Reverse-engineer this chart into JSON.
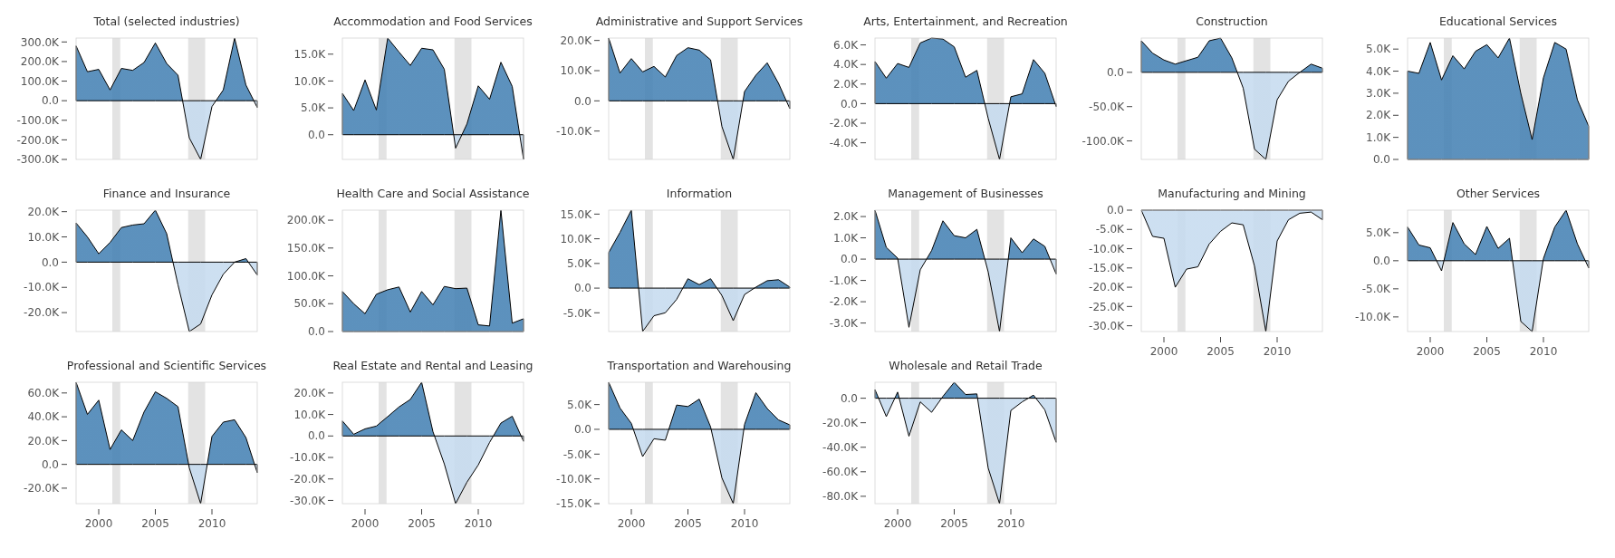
{
  "chart_data": [
    {
      "type": "area",
      "title": "Total (selected industries)",
      "x": [
        1998,
        1999,
        2000,
        2001,
        2002,
        2003,
        2004,
        2005,
        2006,
        2007,
        2008,
        2009,
        2010,
        2011,
        2012,
        2013,
        2014
      ],
      "series": [
        {
          "colors": [
            "#4682b4",
            "#4682b4",
            "#4682b4",
            "#4682b4",
            "#4682b4",
            "#4682b4",
            "#4682b4",
            "#4682b4",
            "#4682b4",
            "#4682b4",
            "#c6dbef",
            "#c6dbef",
            "#c6dbef",
            "#4682b4",
            "#4682b4",
            "#4682b4",
            "#c6dbef"
          ],
          "values": [
            280000,
            148000,
            160000,
            55000,
            165000,
            155000,
            195000,
            295000,
            190000,
            130000,
            -190000,
            -300000,
            -30000,
            55000,
            320000,
            80000,
            -35000
          ]
        }
      ],
      "xlim": [
        1998,
        2014
      ],
      "xticks": [
        2000,
        2005,
        2010
      ],
      "ylim": [
        -300000,
        320000
      ],
      "yticks": [
        {
          "value": -300000,
          "label": "-300.0K"
        },
        {
          "value": -200000,
          "label": "-200.0K"
        },
        {
          "value": -100000,
          "label": "-100.0K"
        },
        {
          "value": 0,
          "label": "0.0"
        },
        {
          "value": 100000,
          "label": "100.0K"
        },
        {
          "value": 200000,
          "label": "200.0K"
        },
        {
          "value": 300000,
          "label": "300.0K"
        }
      ],
      "tick_labels": "y",
      "bands": [
        {
          "axis": "x",
          "from": 2001.2,
          "to": 2001.9,
          "color": "#e3e3e3"
        },
        {
          "axis": "x",
          "from": 2007.9,
          "to": 2009.4,
          "color": "#e3e3e3"
        }
      ]
    },
    {
      "type": "area",
      "title": "Accommodation and Food Services",
      "x": [
        1998,
        1999,
        2000,
        2001,
        2002,
        2003,
        2004,
        2005,
        2006,
        2007,
        2008,
        2009,
        2010,
        2011,
        2012,
        2013,
        2014
      ],
      "series": [
        {
          "colors": [
            "#4682b4",
            "#4682b4",
            "#4682b4",
            "#4682b4",
            "#4682b4",
            "#4682b4",
            "#4682b4",
            "#4682b4",
            "#4682b4",
            "#4682b4",
            "#c6dbef",
            "#4682b4",
            "#4682b4",
            "#4682b4",
            "#4682b4",
            "#4682b4",
            "#c6dbef"
          ],
          "values": [
            7700,
            4500,
            10200,
            4600,
            18000,
            15400,
            12900,
            16100,
            15800,
            12200,
            -2500,
            2000,
            9100,
            6600,
            13500,
            9000,
            -4600
          ]
        }
      ],
      "xlim": [
        1998,
        2014
      ],
      "xticks": [
        2000,
        2005,
        2010
      ],
      "ylim": [
        -4600,
        18000
      ],
      "yticks": [
        {
          "value": 0,
          "label": "0.0"
        },
        {
          "value": 5000,
          "label": "5.0K"
        },
        {
          "value": 10000,
          "label": "10.0K"
        },
        {
          "value": 15000,
          "label": "15.0K"
        }
      ],
      "tick_labels": "y",
      "bands": [
        {
          "axis": "x",
          "from": 2001.2,
          "to": 2001.9,
          "color": "#e3e3e3"
        },
        {
          "axis": "x",
          "from": 2007.9,
          "to": 2009.4,
          "color": "#e3e3e3"
        }
      ]
    },
    {
      "type": "area",
      "title": "Administrative and Support Services",
      "x": [
        1998,
        1999,
        2000,
        2001,
        2002,
        2003,
        2004,
        2005,
        2006,
        2007,
        2008,
        2009,
        2010,
        2011,
        2012,
        2013,
        2014
      ],
      "series": [
        {
          "colors": [
            "#4682b4",
            "#4682b4",
            "#4682b4",
            "#4682b4",
            "#4682b4",
            "#4682b4",
            "#4682b4",
            "#4682b4",
            "#4682b4",
            "#4682b4",
            "#c6dbef",
            "#c6dbef",
            "#4682b4",
            "#4682b4",
            "#4682b4",
            "#4682b4",
            "#c6dbef"
          ],
          "values": [
            20800,
            9200,
            14000,
            9600,
            11400,
            7900,
            15000,
            17600,
            16800,
            13600,
            -8500,
            -19400,
            3100,
            8500,
            12600,
            5800,
            -2600
          ]
        }
      ],
      "xlim": [
        1998,
        2014
      ],
      "xticks": [
        2000,
        2005,
        2010
      ],
      "ylim": [
        -19400,
        20800
      ],
      "yticks": [
        {
          "value": -10000,
          "label": "-10.0K"
        },
        {
          "value": 0,
          "label": "0.0"
        },
        {
          "value": 10000,
          "label": "10.0K"
        },
        {
          "value": 20000,
          "label": "20.0K"
        }
      ],
      "tick_labels": "y",
      "bands": [
        {
          "axis": "x",
          "from": 2001.2,
          "to": 2001.9,
          "color": "#e3e3e3"
        },
        {
          "axis": "x",
          "from": 2007.9,
          "to": 2009.4,
          "color": "#e3e3e3"
        }
      ]
    },
    {
      "type": "area",
      "title": "Arts, Entertainment, and Recreation",
      "x": [
        1998,
        1999,
        2000,
        2001,
        2002,
        2003,
        2004,
        2005,
        2006,
        2007,
        2008,
        2009,
        2010,
        2011,
        2012,
        2013,
        2014
      ],
      "series": [
        {
          "colors": [
            "#4682b4",
            "#4682b4",
            "#4682b4",
            "#4682b4",
            "#4682b4",
            "#4682b4",
            "#4682b4",
            "#4682b4",
            "#4682b4",
            "#4682b4",
            "#c6dbef",
            "#c6dbef",
            "#4682b4",
            "#4682b4",
            "#4682b4",
            "#4682b4",
            "#c6dbef"
          ],
          "values": [
            4300,
            2600,
            4100,
            3700,
            6200,
            6700,
            6600,
            5800,
            2700,
            3400,
            -1500,
            -5700,
            700,
            1000,
            4500,
            3100,
            -300
          ]
        }
      ],
      "xlim": [
        1998,
        2014
      ],
      "xticks": [
        2000,
        2005,
        2010
      ],
      "ylim": [
        -5700,
        6700
      ],
      "yticks": [
        {
          "value": -4000,
          "label": "-4.0K"
        },
        {
          "value": -2000,
          "label": "-2.0K"
        },
        {
          "value": 0,
          "label": "0.0"
        },
        {
          "value": 2000,
          "label": "2.0K"
        },
        {
          "value": 4000,
          "label": "4.0K"
        },
        {
          "value": 6000,
          "label": "6.0K"
        }
      ],
      "tick_labels": "y",
      "bands": [
        {
          "axis": "x",
          "from": 2001.2,
          "to": 2001.9,
          "color": "#e3e3e3"
        },
        {
          "axis": "x",
          "from": 2007.9,
          "to": 2009.4,
          "color": "#e3e3e3"
        }
      ]
    },
    {
      "type": "area",
      "title": "Construction",
      "x": [
        1998,
        1999,
        2000,
        2001,
        2002,
        2003,
        2004,
        2005,
        2006,
        2007,
        2008,
        2009,
        2010,
        2011,
        2012,
        2013,
        2014
      ],
      "series": [
        {
          "colors": [
            "#4682b4",
            "#4682b4",
            "#4682b4",
            "#4682b4",
            "#4682b4",
            "#4682b4",
            "#4682b4",
            "#4682b4",
            "#4682b4",
            "#c6dbef",
            "#c6dbef",
            "#c6dbef",
            "#c6dbef",
            "#c6dbef",
            "#4682b4",
            "#4682b4",
            "#4682b4"
          ],
          "values": [
            46000,
            28000,
            18000,
            12000,
            17000,
            22000,
            46000,
            50000,
            21000,
            -23000,
            -112000,
            -127000,
            -40000,
            -13000,
            0,
            12000,
            6000
          ]
        }
      ],
      "xlim": [
        1998,
        2014
      ],
      "xticks": [
        2000,
        2005,
        2010
      ],
      "ylim": [
        -127000,
        50000
      ],
      "yticks": [
        {
          "value": -100000,
          "label": "-100.0K"
        },
        {
          "value": -50000,
          "label": "-50.0K"
        },
        {
          "value": 0,
          "label": "0.0"
        }
      ],
      "tick_labels": "y",
      "bands": [
        {
          "axis": "x",
          "from": 2001.2,
          "to": 2001.9,
          "color": "#e3e3e3"
        },
        {
          "axis": "x",
          "from": 2007.9,
          "to": 2009.4,
          "color": "#e3e3e3"
        }
      ]
    },
    {
      "type": "area",
      "title": "Educational Services",
      "x": [
        1998,
        1999,
        2000,
        2001,
        2002,
        2003,
        2004,
        2005,
        2006,
        2007,
        2008,
        2009,
        2010,
        2011,
        2012,
        2013,
        2014
      ],
      "series": [
        {
          "colors": [
            "#4682b4",
            "#4682b4",
            "#4682b4",
            "#4682b4",
            "#4682b4",
            "#4682b4",
            "#4682b4",
            "#4682b4",
            "#4682b4",
            "#4682b4",
            "#4682b4",
            "#4682b4",
            "#4682b4",
            "#4682b4",
            "#4682b4",
            "#4682b4",
            "#4682b4"
          ],
          "values": [
            4000,
            3900,
            5300,
            3600,
            4700,
            4100,
            4900,
            5200,
            4600,
            5500,
            3000,
            900,
            3700,
            5300,
            5000,
            2700,
            1500
          ]
        }
      ],
      "xlim": [
        1998,
        2014
      ],
      "xticks": [
        2000,
        2005,
        2010
      ],
      "ylim": [
        0,
        5500
      ],
      "yticks": [
        {
          "value": 0,
          "label": "0.0"
        },
        {
          "value": 1000,
          "label": "1.0K"
        },
        {
          "value": 2000,
          "label": "2.0K"
        },
        {
          "value": 3000,
          "label": "3.0K"
        },
        {
          "value": 4000,
          "label": "4.0K"
        },
        {
          "value": 5000,
          "label": "5.0K"
        }
      ],
      "tick_labels": "y",
      "bands": [
        {
          "axis": "x",
          "from": 2001.2,
          "to": 2001.9,
          "color": "#e3e3e3"
        },
        {
          "axis": "x",
          "from": 2007.9,
          "to": 2009.4,
          "color": "#e3e3e3"
        }
      ]
    },
    {
      "type": "area",
      "title": "Finance and Insurance",
      "x": [
        1998,
        1999,
        2000,
        2001,
        2002,
        2003,
        2004,
        2005,
        2006,
        2007,
        2008,
        2009,
        2010,
        2011,
        2012,
        2013,
        2014
      ],
      "series": [
        {
          "colors": [
            "#4682b4",
            "#4682b4",
            "#4682b4",
            "#4682b4",
            "#4682b4",
            "#4682b4",
            "#4682b4",
            "#4682b4",
            "#4682b4",
            "#c6dbef",
            "#c6dbef",
            "#c6dbef",
            "#c6dbef",
            "#c6dbef",
            "#4682b4",
            "#4682b4",
            "#c6dbef"
          ],
          "values": [
            15500,
            10000,
            3300,
            7800,
            13700,
            14700,
            15200,
            20600,
            11300,
            -9000,
            -27500,
            -24500,
            -13000,
            -4800,
            0,
            1400,
            -5100
          ]
        }
      ],
      "xlim": [
        1998,
        2014
      ],
      "xticks": [
        2000,
        2005,
        2010
      ],
      "ylim": [
        -27500,
        20600
      ],
      "yticks": [
        {
          "value": -20000,
          "label": "-20.0K"
        },
        {
          "value": -10000,
          "label": "-10.0K"
        },
        {
          "value": 0,
          "label": "0.0"
        },
        {
          "value": 10000,
          "label": "10.0K"
        },
        {
          "value": 20000,
          "label": "20.0K"
        }
      ],
      "tick_labels": "y",
      "bands": [
        {
          "axis": "x",
          "from": 2001.2,
          "to": 2001.9,
          "color": "#e3e3e3"
        },
        {
          "axis": "x",
          "from": 2007.9,
          "to": 2009.4,
          "color": "#e3e3e3"
        }
      ]
    },
    {
      "type": "area",
      "title": "Health Care and Social Assistance",
      "x": [
        1998,
        1999,
        2000,
        2001,
        2002,
        2003,
        2004,
        2005,
        2006,
        2007,
        2008,
        2009,
        2010,
        2011,
        2012,
        2013,
        2014
      ],
      "series": [
        {
          "colors": [
            "#4682b4",
            "#4682b4",
            "#4682b4",
            "#4682b4",
            "#4682b4",
            "#4682b4",
            "#4682b4",
            "#4682b4",
            "#4682b4",
            "#4682b4",
            "#4682b4",
            "#4682b4",
            "#4682b4",
            "#4682b4",
            "#4682b4",
            "#4682b4",
            "#4682b4"
          ],
          "values": [
            72000,
            50000,
            32000,
            67000,
            75000,
            80000,
            35000,
            72000,
            48000,
            81000,
            77000,
            78000,
            12000,
            10000,
            218000,
            15000,
            23000
          ]
        }
      ],
      "xlim": [
        1998,
        2014
      ],
      "xticks": [
        2000,
        2005,
        2010
      ],
      "ylim": [
        0,
        218000
      ],
      "yticks": [
        {
          "value": 0,
          "label": "0.0"
        },
        {
          "value": 50000,
          "label": "50.0K"
        },
        {
          "value": 100000,
          "label": "100.0K"
        },
        {
          "value": 150000,
          "label": "150.0K"
        },
        {
          "value": 200000,
          "label": "200.0K"
        }
      ],
      "tick_labels": "y",
      "bands": [
        {
          "axis": "x",
          "from": 2001.2,
          "to": 2001.9,
          "color": "#e3e3e3"
        },
        {
          "axis": "x",
          "from": 2007.9,
          "to": 2009.4,
          "color": "#e3e3e3"
        }
      ]
    },
    {
      "type": "area",
      "title": "Information",
      "x": [
        1998,
        1999,
        2000,
        2001,
        2002,
        2003,
        2004,
        2005,
        2006,
        2007,
        2008,
        2009,
        2010,
        2011,
        2012,
        2013,
        2014
      ],
      "series": [
        {
          "colors": [
            "#4682b4",
            "#4682b4",
            "#4682b4",
            "#c6dbef",
            "#c6dbef",
            "#c6dbef",
            "#c6dbef",
            "#4682b4",
            "#4682b4",
            "#4682b4",
            "#c6dbef",
            "#c6dbef",
            "#c6dbef",
            "#4682b4",
            "#4682b4",
            "#4682b4",
            "#4682b4"
          ],
          "values": [
            7200,
            11300,
            15800,
            -8800,
            -5600,
            -5000,
            -2300,
            1900,
            700,
            1900,
            -1500,
            -6600,
            -1300,
            200,
            1500,
            1700,
            200
          ]
        }
      ],
      "xlim": [
        1998,
        2014
      ],
      "xticks": [
        2000,
        2005,
        2010
      ],
      "ylim": [
        -8800,
        15800
      ],
      "yticks": [
        {
          "value": -5000,
          "label": "-5.0K"
        },
        {
          "value": 0,
          "label": "0.0"
        },
        {
          "value": 5000,
          "label": "5.0K"
        },
        {
          "value": 10000,
          "label": "10.0K"
        },
        {
          "value": 15000,
          "label": "15.0K"
        }
      ],
      "tick_labels": "y",
      "bands": [
        {
          "axis": "x",
          "from": 2001.2,
          "to": 2001.9,
          "color": "#e3e3e3"
        },
        {
          "axis": "x",
          "from": 2007.9,
          "to": 2009.4,
          "color": "#e3e3e3"
        }
      ]
    },
    {
      "type": "area",
      "title": "Management of Businesses",
      "x": [
        1998,
        1999,
        2000,
        2001,
        2002,
        2003,
        2004,
        2005,
        2006,
        2007,
        2008,
        2009,
        2010,
        2011,
        2012,
        2013,
        2014
      ],
      "series": [
        {
          "colors": [
            "#4682b4",
            "#4682b4",
            "#4682b4",
            "#c6dbef",
            "#c6dbef",
            "#4682b4",
            "#4682b4",
            "#4682b4",
            "#4682b4",
            "#4682b4",
            "#c6dbef",
            "#c6dbef",
            "#4682b4",
            "#4682b4",
            "#4682b4",
            "#4682b4",
            "#c6dbef"
          ],
          "values": [
            2300,
            550,
            50,
            -3200,
            -500,
            400,
            1800,
            1100,
            1000,
            1400,
            -600,
            -3400,
            1000,
            300,
            950,
            600,
            -700
          ]
        }
      ],
      "xlim": [
        1998,
        2014
      ],
      "xticks": [
        2000,
        2005,
        2010
      ],
      "ylim": [
        -3400,
        2300
      ],
      "yticks": [
        {
          "value": -3000,
          "label": "-3.0K"
        },
        {
          "value": -2000,
          "label": "-2.0K"
        },
        {
          "value": -1000,
          "label": "-1.0K"
        },
        {
          "value": 0,
          "label": "0.0"
        },
        {
          "value": 1000,
          "label": "1.0K"
        },
        {
          "value": 2000,
          "label": "2.0K"
        }
      ],
      "tick_labels": "y",
      "bands": [
        {
          "axis": "x",
          "from": 2001.2,
          "to": 2001.9,
          "color": "#e3e3e3"
        },
        {
          "axis": "x",
          "from": 2007.9,
          "to": 2009.4,
          "color": "#e3e3e3"
        }
      ]
    },
    {
      "type": "area",
      "title": "Manufacturing and Mining",
      "x": [
        1998,
        1999,
        2000,
        2001,
        2002,
        2003,
        2004,
        2005,
        2006,
        2007,
        2008,
        2009,
        2010,
        2011,
        2012,
        2013,
        2014
      ],
      "series": [
        {
          "colors": [
            "#4682b4",
            "#c6dbef",
            "#c6dbef",
            "#c6dbef",
            "#c6dbef",
            "#c6dbef",
            "#c6dbef",
            "#c6dbef",
            "#c6dbef",
            "#c6dbef",
            "#c6dbef",
            "#c6dbef",
            "#c6dbef",
            "#c6dbef",
            "#c6dbef",
            "#c6dbef",
            "#c6dbef"
          ],
          "values": [
            0,
            -6800,
            -7300,
            -20000,
            -15300,
            -14700,
            -8800,
            -5500,
            -3300,
            -3800,
            -14500,
            -31500,
            -8000,
            -2500,
            -800,
            -500,
            -2500
          ]
        }
      ],
      "xlim": [
        1998,
        2014
      ],
      "xticks": [
        2000,
        2005,
        2010
      ],
      "ylim": [
        -31500,
        0
      ],
      "yticks": [
        {
          "value": -30000,
          "label": "-30.0K"
        },
        {
          "value": -25000,
          "label": "-25.0K"
        },
        {
          "value": -20000,
          "label": "-20.0K"
        },
        {
          "value": -15000,
          "label": "-15.0K"
        },
        {
          "value": -10000,
          "label": "-10.0K"
        },
        {
          "value": -5000,
          "label": "-5.0K"
        },
        {
          "value": 0,
          "label": "0.0"
        }
      ],
      "bands": [
        {
          "axis": "x",
          "from": 2001.2,
          "to": 2001.9,
          "color": "#e3e3e3"
        },
        {
          "axis": "x",
          "from": 2007.9,
          "to": 2009.4,
          "color": "#e3e3e3"
        }
      ]
    },
    {
      "type": "area",
      "title": "Other Services",
      "x": [
        1998,
        1999,
        2000,
        2001,
        2002,
        2003,
        2004,
        2005,
        2006,
        2007,
        2008,
        2009,
        2010,
        2011,
        2012,
        2013,
        2014
      ],
      "series": [
        {
          "colors": [
            "#4682b4",
            "#4682b4",
            "#4682b4",
            "#c6dbef",
            "#4682b4",
            "#4682b4",
            "#4682b4",
            "#4682b4",
            "#4682b4",
            "#4682b4",
            "#c6dbef",
            "#c6dbef",
            "#4682b4",
            "#4682b4",
            "#4682b4",
            "#4682b4",
            "#c6dbef"
          ],
          "values": [
            6000,
            2800,
            2300,
            -1800,
            6800,
            3000,
            1100,
            6100,
            2200,
            4000,
            -10800,
            -12600,
            400,
            6000,
            9000,
            3000,
            -1300
          ]
        }
      ],
      "xlim": [
        1998,
        2014
      ],
      "xticks": [
        2000,
        2005,
        2010
      ],
      "ylim": [
        -12600,
        9000
      ],
      "yticks": [
        {
          "value": -10000,
          "label": "-10.0K"
        },
        {
          "value": -5000,
          "label": "-5.0K"
        },
        {
          "value": 0,
          "label": "0.0"
        },
        {
          "value": 5000,
          "label": "5.0K"
        }
      ],
      "bands": [
        {
          "axis": "x",
          "from": 2001.2,
          "to": 2001.9,
          "color": "#e3e3e3"
        },
        {
          "axis": "x",
          "from": 2007.9,
          "to": 2009.4,
          "color": "#e3e3e3"
        }
      ]
    },
    {
      "type": "area",
      "title": "Professional and Scientific Services",
      "x": [
        1998,
        1999,
        2000,
        2001,
        2002,
        2003,
        2004,
        2005,
        2006,
        2007,
        2008,
        2009,
        2010,
        2011,
        2012,
        2013,
        2014
      ],
      "series": [
        {
          "colors": [
            "#4682b4",
            "#4682b4",
            "#4682b4",
            "#4682b4",
            "#4682b4",
            "#4682b4",
            "#4682b4",
            "#4682b4",
            "#4682b4",
            "#4682b4",
            "#c6dbef",
            "#c6dbef",
            "#4682b4",
            "#4682b4",
            "#4682b4",
            "#4682b4",
            "#c6dbef"
          ],
          "values": [
            69000,
            42000,
            54000,
            12500,
            29000,
            20000,
            44000,
            61000,
            55500,
            48500,
            -3000,
            -33000,
            23500,
            35500,
            37500,
            22500,
            -7000
          ]
        }
      ],
      "xlim": [
        1998,
        2014
      ],
      "xticks": [
        2000,
        2005,
        2010
      ],
      "ylim": [
        -33000,
        69000
      ],
      "yticks": [
        {
          "value": -20000,
          "label": "-20.0K"
        },
        {
          "value": 0,
          "label": "0.0"
        },
        {
          "value": 20000,
          "label": "20.0K"
        },
        {
          "value": 40000,
          "label": "40.0K"
        },
        {
          "value": 60000,
          "label": "60.0K"
        }
      ],
      "bands": [
        {
          "axis": "x",
          "from": 2001.2,
          "to": 2001.9,
          "color": "#e3e3e3"
        },
        {
          "axis": "x",
          "from": 2007.9,
          "to": 2009.4,
          "color": "#e3e3e3"
        }
      ]
    },
    {
      "type": "area",
      "title": "Real Estate and Rental and Leasing",
      "x": [
        1998,
        1999,
        2000,
        2001,
        2002,
        2003,
        2004,
        2005,
        2006,
        2007,
        2008,
        2009,
        2010,
        2011,
        2012,
        2013,
        2014
      ],
      "series": [
        {
          "colors": [
            "#4682b4",
            "#4682b4",
            "#4682b4",
            "#4682b4",
            "#4682b4",
            "#4682b4",
            "#4682b4",
            "#4682b4",
            "#4682b4",
            "#c6dbef",
            "#c6dbef",
            "#c6dbef",
            "#c6dbef",
            "#c6dbef",
            "#4682b4",
            "#4682b4",
            "#c6dbef"
          ],
          "values": [
            7000,
            800,
            3300,
            4600,
            9000,
            13500,
            17000,
            25000,
            2000,
            -13000,
            -31500,
            -21500,
            -13500,
            -3000,
            6000,
            9200,
            -2500
          ]
        }
      ],
      "xlim": [
        1998,
        2014
      ],
      "xticks": [
        2000,
        2005,
        2010
      ],
      "ylim": [
        -31500,
        25000
      ],
      "yticks": [
        {
          "value": -30000,
          "label": "-30.0K"
        },
        {
          "value": -20000,
          "label": "-20.0K"
        },
        {
          "value": -10000,
          "label": "-10.0K"
        },
        {
          "value": 0,
          "label": "0.0"
        },
        {
          "value": 10000,
          "label": "10.0K"
        },
        {
          "value": 20000,
          "label": "20.0K"
        }
      ],
      "bands": [
        {
          "axis": "x",
          "from": 2001.2,
          "to": 2001.9,
          "color": "#e3e3e3"
        },
        {
          "axis": "x",
          "from": 2007.9,
          "to": 2009.4,
          "color": "#e3e3e3"
        }
      ]
    },
    {
      "type": "area",
      "title": "Transportation and Warehousing",
      "x": [
        1998,
        1999,
        2000,
        2001,
        2002,
        2003,
        2004,
        2005,
        2006,
        2007,
        2008,
        2009,
        2010,
        2011,
        2012,
        2013,
        2014
      ],
      "series": [
        {
          "colors": [
            "#4682b4",
            "#4682b4",
            "#4682b4",
            "#c6dbef",
            "#c6dbef",
            "#c6dbef",
            "#4682b4",
            "#4682b4",
            "#4682b4",
            "#4682b4",
            "#c6dbef",
            "#c6dbef",
            "#4682b4",
            "#4682b4",
            "#4682b4",
            "#4682b4",
            "#4682b4"
          ],
          "values": [
            9500,
            4300,
            1200,
            -5500,
            -1900,
            -2200,
            4900,
            4600,
            6100,
            500,
            -9800,
            -15000,
            1000,
            7400,
            4200,
            1900,
            900
          ]
        }
      ],
      "xlim": [
        1998,
        2014
      ],
      "xticks": [
        2000,
        2005,
        2010
      ],
      "ylim": [
        -15000,
        9500
      ],
      "yticks": [
        {
          "value": -15000,
          "label": "-15.0K"
        },
        {
          "value": -10000,
          "label": "-10.0K"
        },
        {
          "value": -5000,
          "label": "-5.0K"
        },
        {
          "value": 0,
          "label": "0.0"
        },
        {
          "value": 5000,
          "label": "5.0K"
        }
      ],
      "bands": [
        {
          "axis": "x",
          "from": 2001.2,
          "to": 2001.9,
          "color": "#e3e3e3"
        },
        {
          "axis": "x",
          "from": 2007.9,
          "to": 2009.4,
          "color": "#e3e3e3"
        }
      ]
    },
    {
      "type": "area",
      "title": "Wholesale and Retail Trade",
      "x": [
        1998,
        1999,
        2000,
        2001,
        2002,
        2003,
        2004,
        2005,
        2006,
        2007,
        2008,
        2009,
        2010,
        2011,
        2012,
        2013,
        2014
      ],
      "series": [
        {
          "colors": [
            "#4682b4",
            "#c6dbef",
            "#4682b4",
            "#c6dbef",
            "#c6dbef",
            "#c6dbef",
            "#4682b4",
            "#4682b4",
            "#4682b4",
            "#4682b4",
            "#c6dbef",
            "#c6dbef",
            "#c6dbef",
            "#c6dbef",
            "#4682b4",
            "#c6dbef",
            "#c6dbef"
          ],
          "values": [
            7000,
            -15000,
            5000,
            -31000,
            -3000,
            -11500,
            1500,
            13000,
            3000,
            3500,
            -57000,
            -86000,
            -10000,
            -3000,
            2500,
            -9500,
            -36000
          ]
        }
      ],
      "xlim": [
        1998,
        2014
      ],
      "xticks": [
        2000,
        2005,
        2010
      ],
      "ylim": [
        -86000,
        13000
      ],
      "yticks": [
        {
          "value": -80000,
          "label": "-80.0K"
        },
        {
          "value": -60000,
          "label": "-60.0K"
        },
        {
          "value": -40000,
          "label": "-40.0K"
        },
        {
          "value": -20000,
          "label": "-20.0K"
        },
        {
          "value": 0,
          "label": "0.0"
        }
      ],
      "bands": [
        {
          "axis": "x",
          "from": 2001.2,
          "to": 2001.9,
          "color": "#e3e3e3"
        },
        {
          "axis": "x",
          "from": 2007.9,
          "to": 2009.4,
          "color": "#e3e3e3"
        }
      ]
    }
  ]
}
